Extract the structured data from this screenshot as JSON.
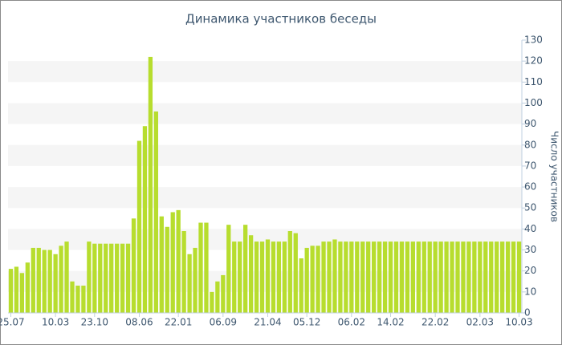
{
  "chart_data": {
    "type": "bar",
    "title": "Динамика участников беседы",
    "y_axis_label": "Число участников",
    "categories": [
      "25.07",
      null,
      null,
      null,
      null,
      null,
      null,
      null,
      "10.03",
      null,
      null,
      null,
      null,
      null,
      null,
      "23.10",
      null,
      null,
      null,
      null,
      null,
      null,
      null,
      "08.06",
      null,
      null,
      null,
      null,
      null,
      null,
      "22.01",
      null,
      null,
      null,
      null,
      null,
      null,
      null,
      "06.09",
      null,
      null,
      null,
      null,
      null,
      null,
      null,
      "21.04",
      null,
      null,
      null,
      null,
      null,
      null,
      "05.12",
      null,
      null,
      null,
      null,
      null,
      null,
      null,
      "06.02",
      null,
      null,
      null,
      null,
      null,
      null,
      "14.02",
      null,
      null,
      null,
      null,
      null,
      null,
      null,
      "22.02",
      null,
      null,
      null,
      null,
      null,
      null,
      null,
      "02.03",
      null,
      null,
      null,
      null,
      null,
      null,
      "10.03"
    ],
    "values": [
      21,
      22,
      19,
      24,
      31,
      31,
      30,
      30,
      28,
      32,
      34,
      15,
      13,
      13,
      34,
      33,
      33,
      33,
      33,
      33,
      33,
      33,
      45,
      82,
      89,
      122,
      96,
      46,
      41,
      48,
      49,
      39,
      28,
      31,
      43,
      43,
      10,
      15,
      18,
      42,
      34,
      34,
      42,
      37,
      34,
      34,
      35,
      34,
      34,
      34,
      39,
      38,
      26,
      31,
      32,
      32,
      34,
      34,
      35,
      34,
      34,
      34,
      34,
      34,
      34,
      34,
      34,
      34,
      34,
      34,
      34,
      34,
      34,
      34,
      34,
      34,
      34,
      34,
      34,
      34,
      34,
      34,
      34,
      34,
      34,
      34,
      34,
      34,
      34,
      34,
      34,
      34
    ],
    "color": "#b7dd2e",
    "ylim": [
      0,
      130
    ],
    "yticks": [
      0,
      10,
      20,
      30,
      40,
      50,
      60,
      70,
      80,
      90,
      100,
      110,
      120,
      130
    ],
    "alternate_bands": true
  }
}
